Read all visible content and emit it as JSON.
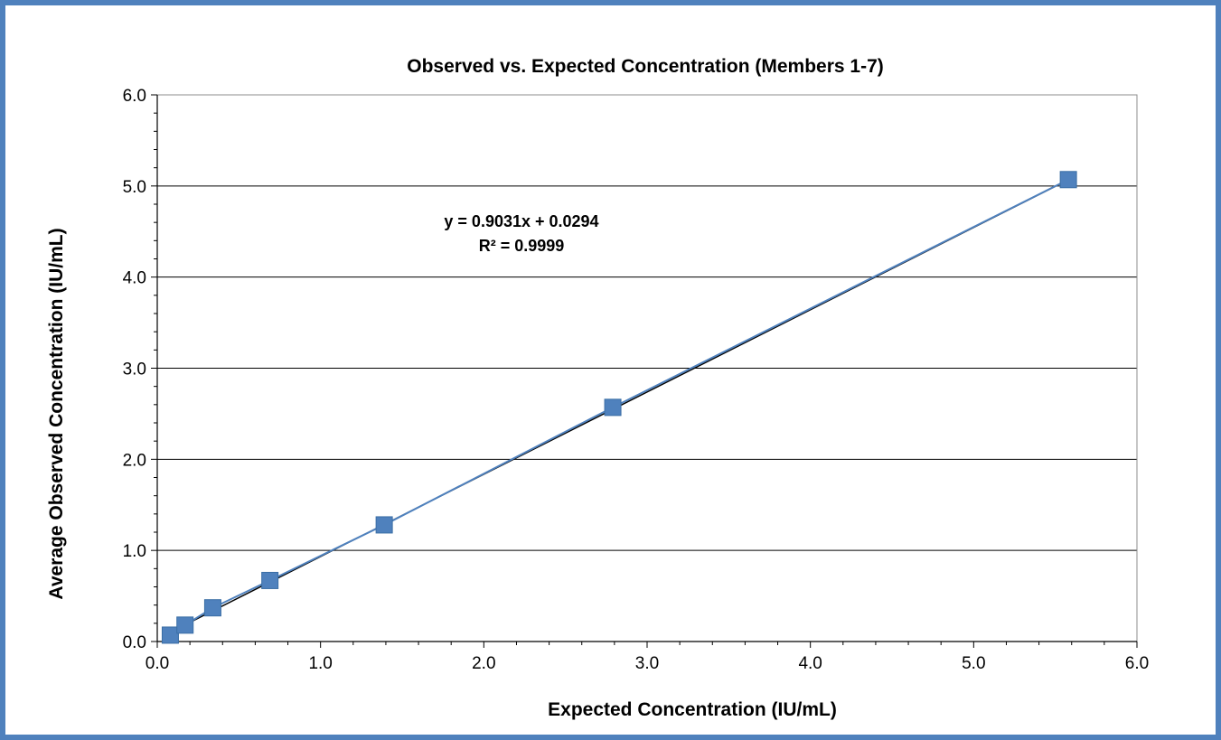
{
  "chart_data": {
    "type": "scatter",
    "title": "Observed vs. Expected Concentration (Members 1-7)",
    "xlabel": "Expected Concentration (IU/mL)",
    "ylabel": "Average Observed Concentration (IU/mL)",
    "xlim": [
      0,
      6
    ],
    "ylim": [
      0,
      6
    ],
    "x_ticks": [
      "0.0",
      "1.0",
      "2.0",
      "3.0",
      "4.0",
      "5.0",
      "6.0"
    ],
    "y_ticks": [
      "0.0",
      "1.0",
      "2.0",
      "3.0",
      "4.0",
      "5.0",
      "6.0"
    ],
    "grid": "horizontal",
    "series": [
      {
        "x": [
          0.08,
          0.17,
          0.34,
          0.69,
          1.39,
          2.79,
          5.58
        ],
        "y": [
          0.07,
          0.18,
          0.37,
          0.67,
          1.28,
          2.57,
          5.07
        ],
        "color": "#4f81bd",
        "marker": "square"
      }
    ],
    "trendline": {
      "slope": 0.9031,
      "intercept": 0.0294,
      "color": "#000000",
      "equation": "y = 0.9031x + 0.0294",
      "r_squared": "R² = 0.9999"
    }
  }
}
